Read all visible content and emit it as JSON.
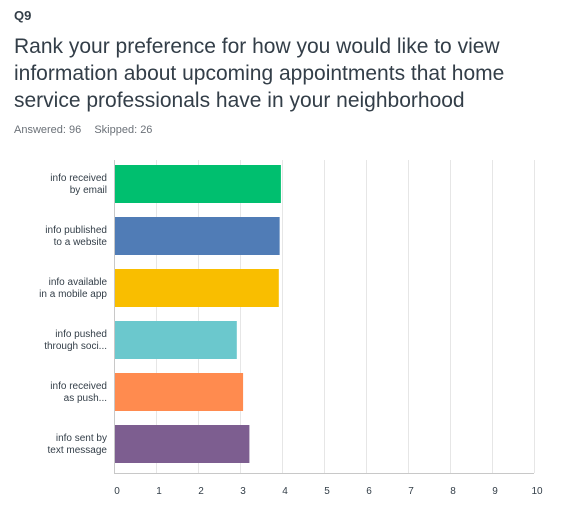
{
  "question": {
    "number": "Q9",
    "title": "Rank your preference for how you would like to view information about upcoming appointments that home service professionals have in your neighborhood",
    "answered": "Answered: 96",
    "skipped": "Skipped: 26"
  },
  "chart_data": {
    "type": "bar",
    "orientation": "horizontal",
    "categories": [
      [
        "info received",
        "by email"
      ],
      [
        "info published",
        "to a website"
      ],
      [
        "info available",
        "in a mobile app"
      ],
      [
        "info pushed",
        "through soci..."
      ],
      [
        "info received",
        "as push..."
      ],
      [
        "info sent by",
        "text message"
      ]
    ],
    "values": [
      3.95,
      3.92,
      3.9,
      2.9,
      3.05,
      3.2
    ],
    "colors": [
      "#00bf6f",
      "#507cb6",
      "#f9be00",
      "#6bc8cd",
      "#ff8b4f",
      "#7d5e90"
    ],
    "xlim": [
      0,
      10
    ],
    "xticks": [
      0,
      1,
      2,
      3,
      4,
      5,
      6,
      7,
      8,
      9,
      10
    ],
    "grid": true,
    "title": "",
    "xlabel": "",
    "ylabel": ""
  }
}
